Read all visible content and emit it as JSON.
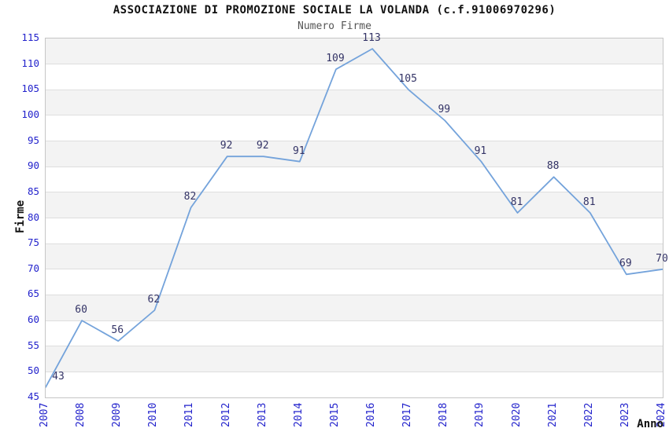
{
  "chart_data": {
    "type": "line",
    "title": "ASSOCIAZIONE DI PROMOZIONE SOCIALE LA VOLANDA (c.f.91006970296)",
    "subtitle": "Numero Firme",
    "xlabel": "Anno",
    "ylabel": "Firme",
    "x": [
      "2007",
      "2008",
      "2009",
      "2010",
      "2011",
      "2012",
      "2013",
      "2014",
      "2015",
      "2016",
      "2017",
      "2018",
      "2019",
      "2020",
      "2021",
      "2022",
      "2023",
      "2024"
    ],
    "values": [
      43,
      60,
      56,
      62,
      82,
      92,
      92,
      91,
      109,
      113,
      105,
      99,
      91,
      81,
      88,
      81,
      69,
      70
    ],
    "ylim": [
      45,
      115
    ],
    "ytick_step": 5,
    "grid": "horizontal-bands-every-5",
    "legend": "none",
    "colors": {
      "line": "#74a3db",
      "tick_labels": "#2222cc",
      "data_labels": "#333366",
      "band_gray": "#f3f3f3",
      "gridline": "#dedede",
      "plot_border": "#c6c6c6",
      "title": "#111111",
      "subtitle": "#555555",
      "axis_titles": "#111111"
    }
  }
}
